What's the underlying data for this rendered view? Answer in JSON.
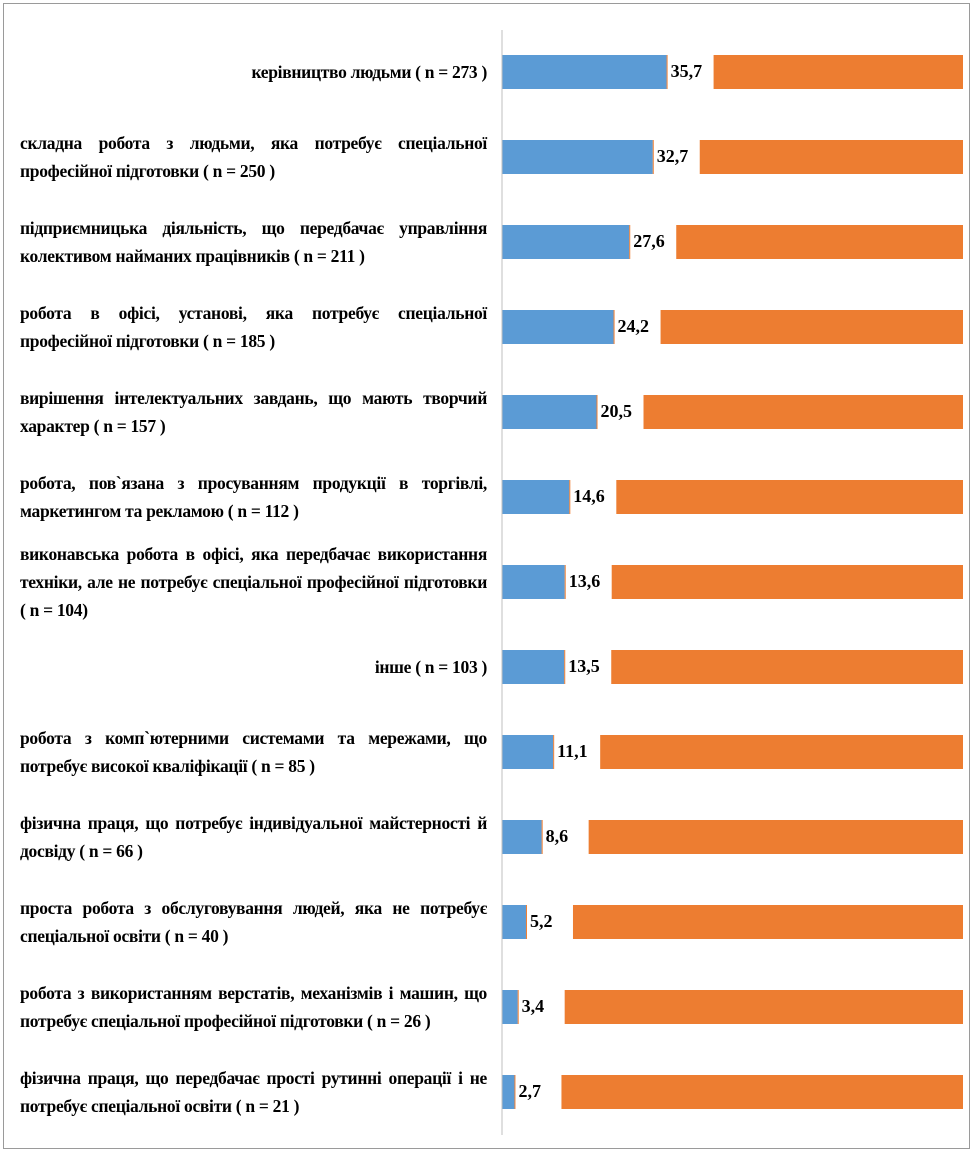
{
  "chart_data": {
    "type": "bar_stacked_horizontal",
    "categories": [
      "керівництво людьми ( n  = 273 )",
      "складна робота з людьми, яка потребує спеціальної професійної підготовки ( n  = 250 )",
      "підприємницька діяльність, що передбачає управління колективом найманих працівників ( n  = 211 )",
      "робота в офісі, установі, яка потребує спеціальної професійної підготовки ( n  = 185 )",
      "вирішення інтелектуальних завдань, що мають творчий характер ( n  = 157 )",
      "робота, пов`язана з просуванням продукції в торгівлі, маркетингом та рекламою ( n  = 112 )",
      "виконавська робота в офісі, яка передбачає використання техніки, але не потребує спеціальної професійної підготовки ( n  = 104)",
      "інше ( n  = 103 )",
      "робота з комп`ютерними системами та мережами, що потребує високої кваліфікації ( n  = 85 )",
      "фізична праця, що потребує індивідуальної майстерності й досвіду ( n  = 66 )",
      "проста робота з обслуговування людей, яка не потребує спеціальної освіти ( n  = 40 )",
      "робота з використанням верстатів, механізмів і машин, що потребує спеціальної професійної підготовки ( n  = 26 )",
      "фізична праця, що передбачає прості рутинні операції і не потребує спеціальної освіти ( n  = 21 )"
    ],
    "series": [
      {
        "color": "#5b9bd5",
        "values": [
          35.7,
          32.7,
          27.6,
          24.2,
          20.5,
          14.6,
          13.6,
          13.5,
          11.1,
          8.6,
          5.2,
          3.4,
          2.7
        ],
        "value_labels": [
          "35,7",
          "32,7",
          "27,6",
          "24,2",
          "20,5",
          "14,6",
          "13,6",
          "13,5",
          "11,1",
          "8,6",
          "5,2",
          "3,4",
          "2,7"
        ]
      },
      {
        "color": "#ed7d31",
        "values": [
          64.3,
          67.3,
          72.4,
          75.8,
          79.5,
          85.4,
          86.4,
          86.5,
          88.9,
          91.4,
          94.8,
          96.6,
          97.3
        ]
      }
    ],
    "xlim": [
      0,
      100
    ]
  }
}
